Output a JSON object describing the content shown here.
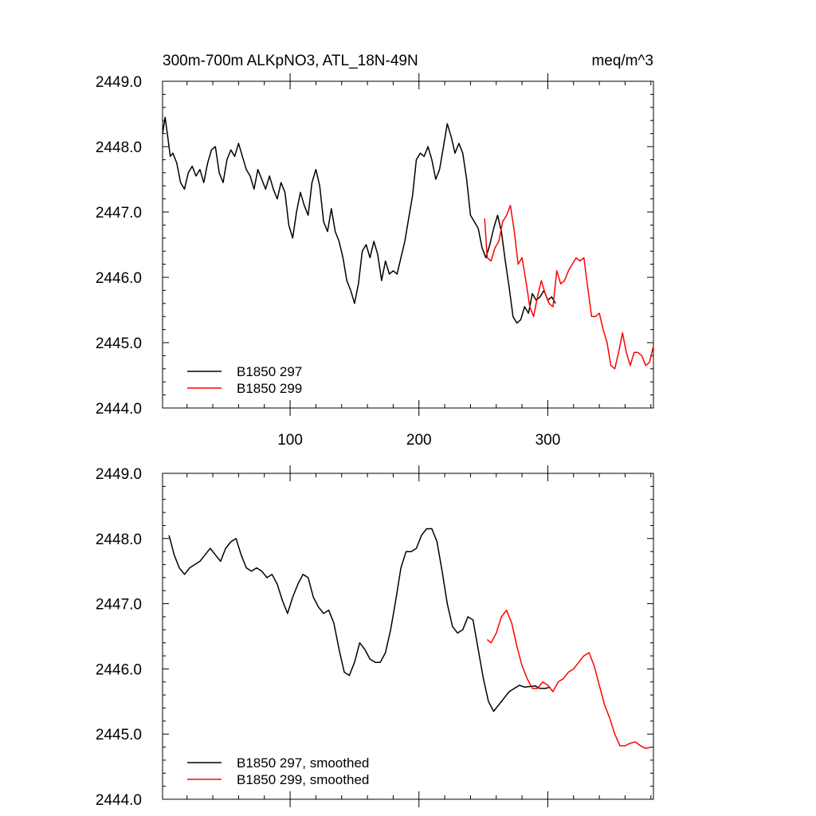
{
  "chart_data": [
    {
      "type": "line",
      "title": "300m-700m ALKpNO3, ATL_18N-49N",
      "units": "meq/m^3",
      "xlim": [
        1,
        382
      ],
      "ylim": [
        2444.0,
        2449.0
      ],
      "xticks": [
        100,
        200,
        300
      ],
      "yticks": [
        "2444.0",
        "2445.0",
        "2446.0",
        "2447.0",
        "2448.0",
        "2449.0"
      ],
      "series": [
        {
          "name": "B1850 297",
          "color": "#000000",
          "x": [
            1,
            3,
            5,
            7,
            9,
            12,
            15,
            18,
            21,
            24,
            27,
            30,
            33,
            36,
            39,
            42,
            45,
            48,
            51,
            54,
            57,
            60,
            63,
            66,
            69,
            72,
            75,
            78,
            81,
            84,
            87,
            90,
            93,
            96,
            99,
            102,
            105,
            108,
            111,
            114,
            117,
            120,
            123,
            126,
            129,
            132,
            135,
            138,
            141,
            144,
            147,
            150,
            153,
            156,
            159,
            162,
            165,
            168,
            171,
            174,
            177,
            180,
            183,
            186,
            189,
            192,
            195,
            198,
            201,
            204,
            207,
            210,
            213,
            216,
            219,
            222,
            225,
            228,
            231,
            234,
            237,
            240,
            243,
            246,
            249,
            252,
            255,
            258,
            261,
            264,
            267,
            270,
            273,
            276,
            279,
            282,
            285,
            288,
            291,
            294,
            297,
            300,
            303,
            306
          ],
          "y": [
            2448.2,
            2448.45,
            2448.15,
            2447.85,
            2447.9,
            2447.75,
            2447.45,
            2447.35,
            2447.6,
            2447.7,
            2447.55,
            2447.65,
            2447.45,
            2447.75,
            2447.95,
            2448.0,
            2447.6,
            2447.45,
            2447.8,
            2447.95,
            2447.85,
            2448.05,
            2447.85,
            2447.65,
            2447.55,
            2447.35,
            2447.65,
            2447.5,
            2447.35,
            2447.55,
            2447.35,
            2447.2,
            2447.45,
            2447.3,
            2446.8,
            2446.6,
            2447.0,
            2447.3,
            2447.1,
            2446.95,
            2447.45,
            2447.65,
            2447.4,
            2446.85,
            2446.7,
            2447.05,
            2446.7,
            2446.55,
            2446.3,
            2445.95,
            2445.8,
            2445.6,
            2445.9,
            2446.4,
            2446.5,
            2446.3,
            2446.55,
            2446.35,
            2445.95,
            2446.25,
            2446.05,
            2446.1,
            2446.05,
            2446.3,
            2446.55,
            2446.9,
            2447.25,
            2447.8,
            2447.9,
            2447.85,
            2448.0,
            2447.8,
            2447.5,
            2447.65,
            2448.0,
            2448.35,
            2448.15,
            2447.9,
            2448.05,
            2447.9,
            2447.5,
            2446.95,
            2446.85,
            2446.75,
            2446.45,
            2446.3,
            2446.5,
            2446.75,
            2446.95,
            2446.7,
            2446.25,
            2445.85,
            2445.4,
            2445.3,
            2445.35,
            2445.55,
            2445.45,
            2445.75,
            2445.65,
            2445.7,
            2445.8,
            2445.65,
            2445.7,
            2445.6
          ]
        },
        {
          "name": "B1850 299",
          "color": "#ff0000",
          "x": [
            251,
            253,
            256,
            259,
            262,
            265,
            268,
            271,
            274,
            277,
            280,
            283,
            286,
            289,
            292,
            295,
            298,
            301,
            304,
            307,
            310,
            313,
            316,
            319,
            322,
            325,
            328,
            331,
            334,
            337,
            340,
            343,
            346,
            349,
            352,
            355,
            358,
            361,
            364,
            367,
            370,
            373,
            376,
            379,
            382
          ],
          "y": [
            2446.9,
            2446.3,
            2446.25,
            2446.45,
            2446.55,
            2446.85,
            2446.95,
            2447.1,
            2446.7,
            2446.2,
            2446.3,
            2445.95,
            2445.55,
            2445.4,
            2445.7,
            2445.95,
            2445.75,
            2445.6,
            2445.55,
            2446.1,
            2445.9,
            2445.95,
            2446.1,
            2446.2,
            2446.3,
            2446.25,
            2446.3,
            2445.85,
            2445.4,
            2445.4,
            2445.45,
            2445.2,
            2445.0,
            2444.65,
            2444.6,
            2444.85,
            2445.15,
            2444.85,
            2444.65,
            2444.85,
            2444.85,
            2444.8,
            2444.65,
            2444.7,
            2444.95
          ]
        }
      ]
    },
    {
      "type": "line",
      "xlim": [
        1,
        382
      ],
      "ylim": [
        2444.0,
        2449.0
      ],
      "xticks": [
        100,
        200,
        300
      ],
      "yticks": [
        "2444.0",
        "2445.0",
        "2446.0",
        "2447.0",
        "2448.0",
        "2449.0"
      ],
      "series": [
        {
          "name": "B1850 297, smoothed",
          "color": "#000000",
          "x": [
            6,
            10,
            14,
            18,
            22,
            26,
            30,
            34,
            38,
            42,
            46,
            50,
            54,
            58,
            62,
            66,
            70,
            74,
            78,
            82,
            86,
            90,
            94,
            98,
            102,
            106,
            110,
            114,
            118,
            122,
            126,
            130,
            134,
            138,
            142,
            146,
            150,
            154,
            158,
            162,
            166,
            170,
            174,
            178,
            182,
            186,
            190,
            194,
            198,
            202,
            206,
            210,
            214,
            218,
            222,
            226,
            230,
            234,
            238,
            242,
            246,
            250,
            254,
            258,
            262,
            266,
            270,
            274,
            278,
            282,
            286,
            290,
            294,
            298,
            302
          ],
          "y": [
            2448.05,
            2447.75,
            2447.55,
            2447.45,
            2447.55,
            2447.6,
            2447.65,
            2447.75,
            2447.85,
            2447.75,
            2447.65,
            2447.85,
            2447.95,
            2448.0,
            2447.75,
            2447.55,
            2447.5,
            2447.55,
            2447.5,
            2447.4,
            2447.45,
            2447.3,
            2447.05,
            2446.85,
            2447.1,
            2447.3,
            2447.45,
            2447.4,
            2447.1,
            2446.95,
            2446.85,
            2446.9,
            2446.7,
            2446.3,
            2445.95,
            2445.9,
            2446.1,
            2446.4,
            2446.3,
            2446.15,
            2446.1,
            2446.1,
            2446.25,
            2446.6,
            2447.05,
            2447.55,
            2447.8,
            2447.8,
            2447.85,
            2448.05,
            2448.15,
            2448.15,
            2447.95,
            2447.5,
            2447.0,
            2446.65,
            2446.55,
            2446.6,
            2446.8,
            2446.75,
            2446.3,
            2445.85,
            2445.5,
            2445.35,
            2445.45,
            2445.55,
            2445.65,
            2445.7,
            2445.75,
            2445.72,
            2445.73,
            2445.74,
            2445.7,
            2445.7,
            2445.72
          ]
        },
        {
          "name": "B1850 299, smoothed",
          "color": "#ff0000",
          "x": [
            253,
            256,
            260,
            264,
            268,
            272,
            276,
            280,
            284,
            288,
            292,
            296,
            300,
            304,
            308,
            312,
            316,
            320,
            324,
            328,
            332,
            336,
            340,
            344,
            348,
            352,
            356,
            360,
            364,
            368,
            372,
            376,
            380
          ],
          "y": [
            2446.45,
            2446.4,
            2446.55,
            2446.8,
            2446.9,
            2446.7,
            2446.35,
            2446.05,
            2445.85,
            2445.7,
            2445.7,
            2445.8,
            2445.75,
            2445.65,
            2445.8,
            2445.85,
            2445.95,
            2446.0,
            2446.1,
            2446.2,
            2446.25,
            2446.05,
            2445.75,
            2445.45,
            2445.25,
            2445.0,
            2444.82,
            2444.82,
            2444.86,
            2444.88,
            2444.82,
            2444.78,
            2444.8
          ]
        }
      ]
    }
  ]
}
